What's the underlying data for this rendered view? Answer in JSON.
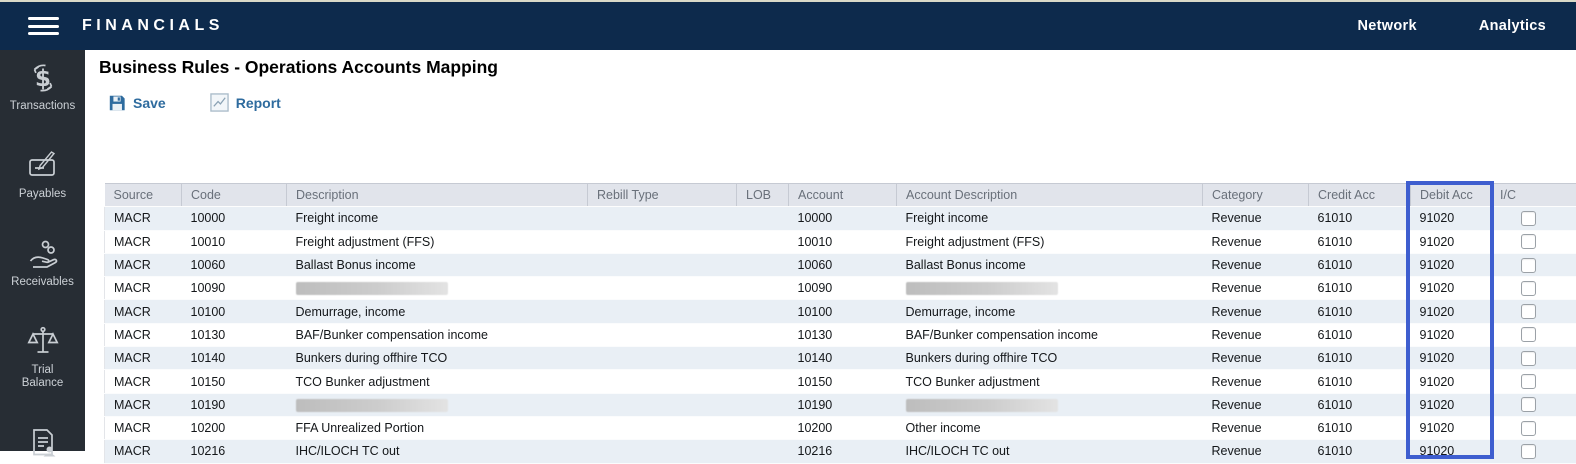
{
  "topbar": {
    "brand": "FINANCIALS",
    "nav": [
      "Network",
      "Analytics"
    ]
  },
  "sidebar": {
    "items": [
      {
        "label": "Transactions",
        "icon": "transactions-icon"
      },
      {
        "label": "Payables",
        "icon": "payables-icon"
      },
      {
        "label": "Receivables",
        "icon": "receivables-icon"
      },
      {
        "label": "Trial\nBalance",
        "icon": "trial-balance-icon"
      },
      {
        "label": "",
        "icon": "document-person-icon"
      }
    ]
  },
  "main": {
    "title": "Business Rules - Operations Accounts Mapping",
    "toolbar": {
      "save_label": "Save",
      "report_label": "Report"
    }
  },
  "table": {
    "columns": [
      "Source",
      "Code",
      "Description",
      "Rebill Type",
      "LOB",
      "Account",
      "Account Description",
      "Category",
      "Credit Acc",
      "Debit Acc",
      "I/C"
    ],
    "highlight": {
      "column": "Debit Acc",
      "color": "#3e5ecf"
    },
    "rows": [
      {
        "source": "MACR",
        "code": "10000",
        "description": "Freight income",
        "description_redacted": false,
        "rebill_type": "",
        "lob": "",
        "account": "10000",
        "account_description": "Freight income",
        "account_description_redacted": false,
        "category": "Revenue",
        "credit_acc": "61010",
        "debit_acc": "91020",
        "ic_checked": false
      },
      {
        "source": "MACR",
        "code": "10010",
        "description": "Freight adjustment (FFS)",
        "description_redacted": false,
        "rebill_type": "",
        "lob": "",
        "account": "10010",
        "account_description": "Freight adjustment (FFS)",
        "account_description_redacted": false,
        "category": "Revenue",
        "credit_acc": "61010",
        "debit_acc": "91020",
        "ic_checked": false
      },
      {
        "source": "MACR",
        "code": "10060",
        "description": "Ballast Bonus income",
        "description_redacted": false,
        "rebill_type": "",
        "lob": "",
        "account": "10060",
        "account_description": "Ballast Bonus income",
        "account_description_redacted": false,
        "category": "Revenue",
        "credit_acc": "61010",
        "debit_acc": "91020",
        "ic_checked": false
      },
      {
        "source": "MACR",
        "code": "10090",
        "description": "",
        "description_redacted": true,
        "rebill_type": "",
        "lob": "",
        "account": "10090",
        "account_description": "",
        "account_description_redacted": true,
        "category": "Revenue",
        "credit_acc": "61010",
        "debit_acc": "91020",
        "ic_checked": false
      },
      {
        "source": "MACR",
        "code": "10100",
        "description": "Demurrage, income",
        "description_redacted": false,
        "rebill_type": "",
        "lob": "",
        "account": "10100",
        "account_description": "Demurrage, income",
        "account_description_redacted": false,
        "category": "Revenue",
        "credit_acc": "61010",
        "debit_acc": "91020",
        "ic_checked": false
      },
      {
        "source": "MACR",
        "code": "10130",
        "description": "BAF/Bunker compensation income",
        "description_redacted": false,
        "rebill_type": "",
        "lob": "",
        "account": "10130",
        "account_description": "BAF/Bunker compensation income",
        "account_description_redacted": false,
        "category": "Revenue",
        "credit_acc": "61010",
        "debit_acc": "91020",
        "ic_checked": false
      },
      {
        "source": "MACR",
        "code": "10140",
        "description": "Bunkers during offhire TCO",
        "description_redacted": false,
        "rebill_type": "",
        "lob": "",
        "account": "10140",
        "account_description": "Bunkers during offhire TCO",
        "account_description_redacted": false,
        "category": "Revenue",
        "credit_acc": "61010",
        "debit_acc": "91020",
        "ic_checked": false
      },
      {
        "source": "MACR",
        "code": "10150",
        "description": "TCO Bunker adjustment",
        "description_redacted": false,
        "rebill_type": "",
        "lob": "",
        "account": "10150",
        "account_description": "TCO Bunker adjustment",
        "account_description_redacted": false,
        "category": "Revenue",
        "credit_acc": "61010",
        "debit_acc": "91020",
        "ic_checked": false
      },
      {
        "source": "MACR",
        "code": "10190",
        "description": "",
        "description_redacted": true,
        "rebill_type": "",
        "lob": "",
        "account": "10190",
        "account_description": "",
        "account_description_redacted": true,
        "category": "Revenue",
        "credit_acc": "61010",
        "debit_acc": "91020",
        "ic_checked": false
      },
      {
        "source": "MACR",
        "code": "10200",
        "description": "FFA Unrealized Portion",
        "description_redacted": false,
        "rebill_type": "",
        "lob": "",
        "account": "10200",
        "account_description": "Other income",
        "account_description_redacted": false,
        "category": "Revenue",
        "credit_acc": "61010",
        "debit_acc": "91020",
        "ic_checked": false
      },
      {
        "source": "MACR",
        "code": "10216",
        "description": "IHC/ILOCH TC out",
        "description_redacted": false,
        "rebill_type": "",
        "lob": "",
        "account": "10216",
        "account_description": "IHC/ILOCH TC out",
        "account_description_redacted": false,
        "category": "Revenue",
        "credit_acc": "61010",
        "debit_acc": "91020",
        "ic_checked": false
      }
    ]
  },
  "colors": {
    "topbar_navy": "#0d2a4c",
    "sidebar_charcoal": "#272d34",
    "table_header_bg": "#e1e4eb",
    "row_alt_blue": "#e9eff5",
    "toolbar_blue": "#2e6b9e",
    "highlight_blue": "#3e5ecf"
  }
}
